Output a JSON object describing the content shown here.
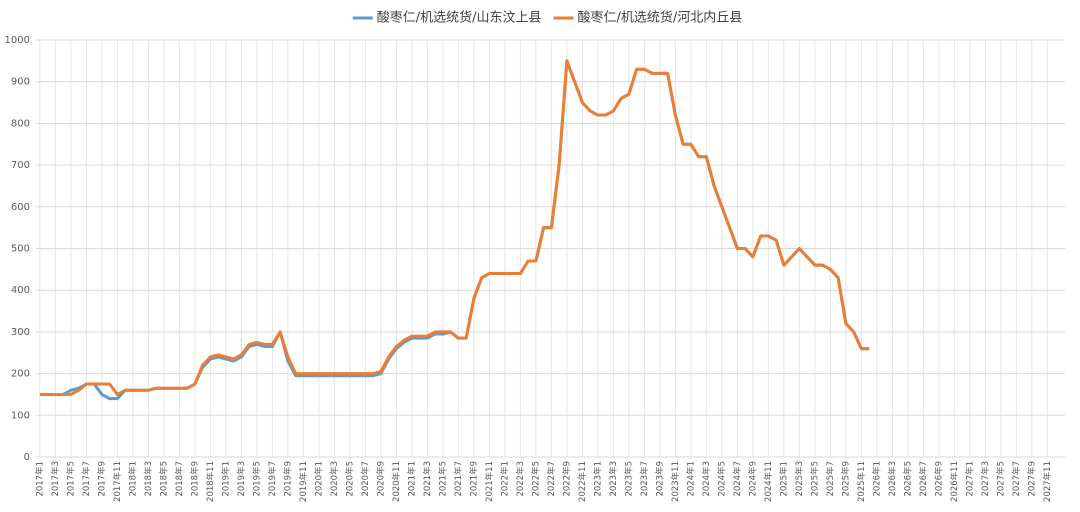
{
  "chart_data": {
    "type": "line",
    "categories": [
      "2017年1",
      null,
      "2017年3",
      null,
      "2017年5",
      null,
      "2017年7",
      null,
      "2017年9",
      null,
      "2017年11",
      null,
      "2018年1",
      null,
      "2018年3",
      null,
      "2018年5",
      null,
      "2018年7",
      null,
      "2018年9",
      null,
      "2018年11",
      null,
      "2019年1",
      null,
      "2019年3",
      null,
      "2019年5",
      null,
      "2019年7",
      null,
      "2019年9",
      null,
      "2019年11",
      null,
      "2020年1",
      null,
      "2020年3",
      null,
      "2020年5",
      null,
      "2020年7",
      null,
      "2020年9",
      null,
      "2020年11",
      null,
      "2021年1",
      null,
      "2021年3",
      null,
      "2021年5",
      null,
      "2021年7",
      null,
      "2021年9",
      null,
      "2021年11",
      null,
      "2022年1",
      null,
      "2022年3",
      null,
      "2022年5",
      null,
      "2022年7",
      null,
      "2022年9",
      null,
      "2022年11",
      null,
      "2023年1",
      null,
      "2023年3",
      null,
      "2023年5",
      null,
      "2023年7",
      null,
      "2023年9",
      null,
      "2023年11",
      null,
      "2024年1",
      null,
      "2024年3",
      null,
      "2024年5",
      null,
      "2024年7",
      null,
      "2024年9",
      null,
      "2024年11",
      null,
      "2025年1",
      null,
      "2025年3",
      null,
      "2025年5",
      null,
      "2025年7",
      null,
      "2025年9",
      null,
      "2025年11",
      null,
      "2026年1",
      null,
      "2026年3",
      null,
      "2026年5",
      null,
      "2026年7",
      null,
      "2026年9",
      null,
      "2026年11",
      null,
      "2027年1",
      null,
      "2027年3",
      null,
      "2027年5",
      null,
      "2027年7",
      null,
      "2027年9",
      null,
      "2027年11",
      null
    ],
    "series": [
      {
        "name": "酸枣仁/机选统货/山东汶上县",
        "color": "#5b9bd5",
        "values": [
          150,
          150,
          150,
          150,
          160,
          165,
          175,
          175,
          150,
          140,
          140,
          160,
          160,
          160,
          160,
          165,
          165,
          165,
          165,
          165,
          175,
          215,
          235,
          240,
          235,
          230,
          240,
          265,
          270,
          265,
          265,
          300,
          230,
          195,
          195,
          195,
          195,
          195,
          195,
          195,
          195,
          195,
          195,
          195,
          200,
          235,
          260,
          275,
          285,
          285,
          285,
          295,
          295,
          300,
          285,
          285,
          380,
          430,
          440,
          440,
          440,
          440,
          440,
          470,
          470,
          550,
          550,
          700,
          950,
          900,
          850,
          830,
          820,
          820,
          830,
          860,
          870,
          930,
          930,
          920,
          920,
          920,
          820,
          750,
          750,
          720,
          720,
          650,
          600,
          550,
          500,
          500,
          480,
          530,
          530,
          520,
          460,
          480,
          500,
          480,
          460,
          460,
          450,
          430,
          320,
          300,
          260,
          260,
          null,
          null,
          null,
          null,
          null,
          null,
          null,
          null,
          null,
          null,
          null,
          null,
          null,
          null,
          null,
          null,
          null,
          null,
          null,
          null,
          null,
          null,
          null,
          null
        ]
      },
      {
        "name": "酸枣仁/机选统货/河北内丘县",
        "color": "#ed7d31",
        "values": [
          150,
          150,
          150,
          150,
          150,
          160,
          175,
          175,
          175,
          175,
          150,
          160,
          160,
          160,
          160,
          165,
          165,
          165,
          165,
          165,
          175,
          220,
          240,
          245,
          240,
          235,
          245,
          270,
          275,
          270,
          270,
          300,
          240,
          200,
          200,
          200,
          200,
          200,
          200,
          200,
          200,
          200,
          200,
          200,
          205,
          240,
          265,
          280,
          290,
          290,
          290,
          300,
          300,
          300,
          285,
          285,
          380,
          430,
          440,
          440,
          440,
          440,
          440,
          470,
          470,
          550,
          550,
          700,
          950,
          900,
          850,
          830,
          820,
          820,
          830,
          860,
          870,
          930,
          930,
          920,
          920,
          920,
          820,
          750,
          750,
          720,
          720,
          650,
          600,
          550,
          500,
          500,
          480,
          530,
          530,
          520,
          460,
          480,
          500,
          480,
          460,
          460,
          450,
          430,
          320,
          300,
          260,
          260,
          null,
          null,
          null,
          null,
          null,
          null,
          null,
          null,
          null,
          null,
          null,
          null,
          null,
          null,
          null,
          null,
          null,
          null,
          null,
          null,
          null,
          null,
          null,
          null
        ]
      }
    ],
    "ylim": [
      0,
      1000
    ],
    "yticks": [
      0,
      100,
      200,
      300,
      400,
      500,
      600,
      700,
      800,
      900,
      1000
    ],
    "grid": true,
    "legend_position": "top"
  }
}
